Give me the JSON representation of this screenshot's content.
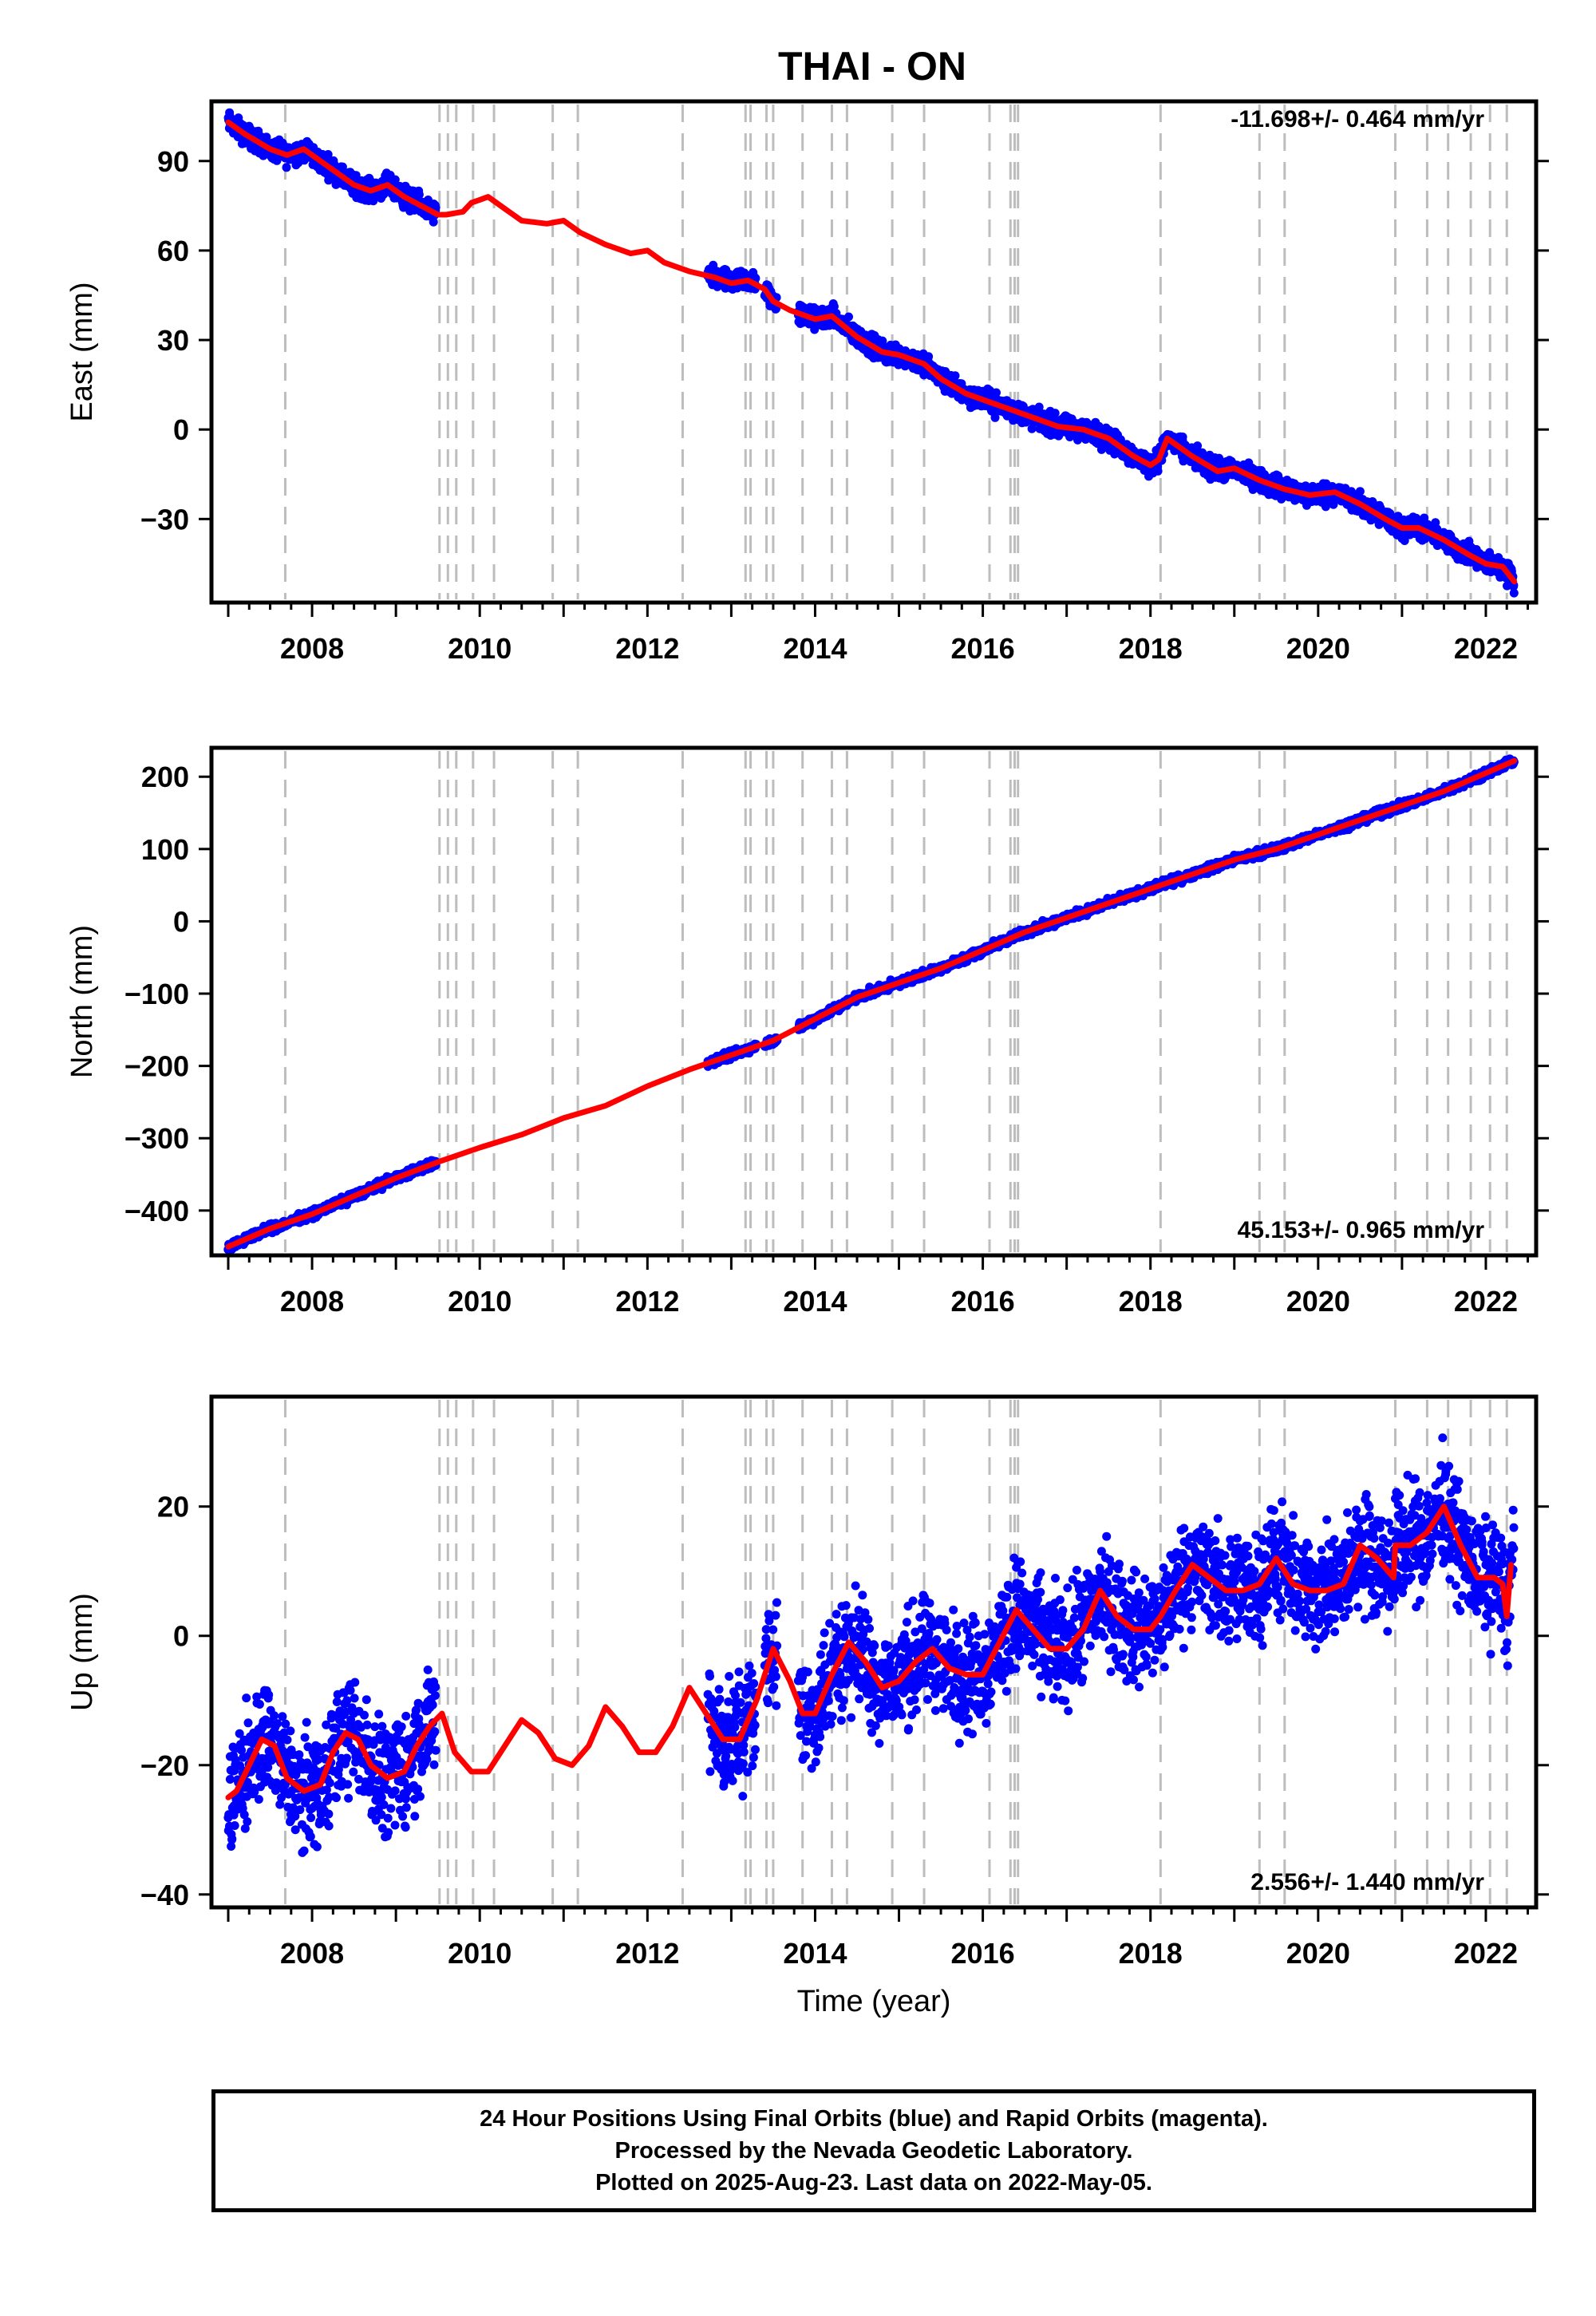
{
  "title": "THAI - ON",
  "footer": {
    "line1": "24 Hour Positions Using Final Orbits (blue) and Rapid Orbits (magenta).",
    "line2": "Processed by the Nevada Geodetic Laboratory.",
    "line3": "Plotted on 2025-Aug-23. Last data on 2022-May-05."
  },
  "colors": {
    "data": "#0000ff",
    "model": "#ff0000",
    "events": "#bdbdbd",
    "axes": "#000000"
  },
  "chart_data": [
    {
      "type": "scatter",
      "component": "East",
      "ylabel": "East (mm)",
      "xlabel": "",
      "rate_label": "-11.698+/- 0.464 mm/yr",
      "rate_position": "top-right",
      "xlim": [
        2006.8,
        2022.6
      ],
      "ylim": [
        -58,
        110
      ],
      "xticks": [
        2008,
        2010,
        2012,
        2014,
        2016,
        2018,
        2020,
        2022
      ],
      "yticks": [
        -30,
        0,
        30,
        60,
        90
      ],
      "events": [
        2007.68,
        2009.52,
        2009.62,
        2009.72,
        2009.92,
        2010.17,
        2010.87,
        2011.17,
        2012.42,
        2013.17,
        2013.23,
        2013.42,
        2013.5,
        2013.85,
        2014.2,
        2014.38,
        2014.92,
        2015.3,
        2016.08,
        2016.33,
        2016.38,
        2016.42,
        2018.12,
        2019.3,
        2019.6,
        2020.92,
        2021.3,
        2021.55,
        2021.82,
        2022.05,
        2022.25
      ],
      "data_spans": [
        [
          2007.0,
          2009.48
        ],
        [
          2012.72,
          2013.3
        ],
        [
          2013.4,
          2013.55
        ],
        [
          2013.8,
          2022.34
        ]
      ],
      "scatter_noise": 2.5,
      "model": {
        "x": [
          2007.0,
          2007.2,
          2007.5,
          2007.7,
          2007.9,
          2008.1,
          2008.3,
          2008.5,
          2008.7,
          2008.9,
          2009.1,
          2009.3,
          2009.5,
          2009.6,
          2009.8,
          2009.9,
          2010.0,
          2010.1,
          2010.3,
          2010.5,
          2010.8,
          2011.0,
          2011.2,
          2011.5,
          2011.8,
          2012.0,
          2012.2,
          2012.5,
          2012.8,
          2013.0,
          2013.2,
          2013.4,
          2013.5,
          2013.7,
          2014.0,
          2014.2,
          2014.5,
          2014.8,
          2015.0,
          2015.3,
          2015.5,
          2015.8,
          2016.0,
          2016.3,
          2016.6,
          2016.9,
          2017.2,
          2017.5,
          2017.8,
          2018.0,
          2018.1,
          2018.2,
          2018.5,
          2018.8,
          2019.0,
          2019.3,
          2019.6,
          2019.9,
          2020.2,
          2020.5,
          2020.8,
          2021.0,
          2021.2,
          2021.5,
          2021.8,
          2022.0,
          2022.2,
          2022.34
        ],
        "y": [
          103,
          99,
          94,
          92,
          94,
          90,
          86,
          82,
          80,
          82,
          78,
          75,
          72,
          72,
          73,
          76,
          77,
          78,
          74,
          70,
          69,
          70,
          66,
          62,
          59,
          60,
          56,
          53,
          51,
          49,
          50,
          47,
          43,
          40,
          37,
          38,
          31,
          26,
          25,
          22,
          17,
          12,
          10,
          7,
          4,
          1,
          0,
          -3,
          -9,
          -12,
          -10,
          -3,
          -9,
          -14,
          -13,
          -17,
          -20,
          -22,
          -21,
          -25,
          -30,
          -33,
          -33,
          -37,
          -42,
          -45,
          -46,
          -51
        ]
      }
    },
    {
      "type": "scatter",
      "component": "North",
      "ylabel": "North (mm)",
      "xlabel": "",
      "rate_label": "45.153+/- 0.965 mm/yr",
      "rate_position": "bottom-right",
      "xlim": [
        2006.8,
        2022.6
      ],
      "ylim": [
        -462,
        240
      ],
      "xticks": [
        2008,
        2010,
        2012,
        2014,
        2016,
        2018,
        2020,
        2022
      ],
      "yticks": [
        -400,
        -300,
        -200,
        -100,
        0,
        100,
        200
      ],
      "events": [
        2007.68,
        2009.52,
        2009.62,
        2009.72,
        2009.92,
        2010.17,
        2010.87,
        2011.17,
        2012.42,
        2013.17,
        2013.23,
        2013.42,
        2013.5,
        2013.85,
        2014.2,
        2014.38,
        2014.92,
        2015.3,
        2016.08,
        2016.33,
        2016.38,
        2016.42,
        2018.12,
        2019.3,
        2019.6,
        2020.92,
        2021.3,
        2021.55,
        2021.82,
        2022.05,
        2022.25
      ],
      "data_spans": [
        [
          2007.0,
          2009.48
        ],
        [
          2012.72,
          2013.3
        ],
        [
          2013.4,
          2013.55
        ],
        [
          2013.8,
          2022.34
        ]
      ],
      "scatter_noise": 4,
      "model": {
        "x": [
          2007.0,
          2007.5,
          2008.0,
          2008.5,
          2009.0,
          2009.5,
          2010.0,
          2010.5,
          2011.0,
          2011.5,
          2012.0,
          2012.5,
          2013.0,
          2013.5,
          2014.0,
          2014.5,
          2015.0,
          2015.5,
          2016.0,
          2016.5,
          2017.0,
          2017.5,
          2018.0,
          2018.5,
          2019.0,
          2019.5,
          2020.0,
          2020.5,
          2021.0,
          2021.5,
          2022.0,
          2022.34
        ],
        "y": [
          -450,
          -425,
          -405,
          -380,
          -355,
          -333,
          -313,
          -295,
          -272,
          -255,
          -228,
          -205,
          -185,
          -165,
          -135,
          -105,
          -85,
          -65,
          -40,
          -15,
          5,
          25,
          45,
          65,
          85,
          100,
          120,
          140,
          160,
          180,
          205,
          222
        ]
      }
    },
    {
      "type": "scatter",
      "component": "Up",
      "ylabel": "Up (mm)",
      "xlabel": "Time (year)",
      "rate_label": "2.556+/- 1.440 mm/yr",
      "rate_position": "bottom-right",
      "xlim": [
        2006.8,
        2022.6
      ],
      "ylim": [
        -42,
        37
      ],
      "xticks": [
        2008,
        2010,
        2012,
        2014,
        2016,
        2018,
        2020,
        2022
      ],
      "yticks": [
        -40,
        -20,
        0,
        20
      ],
      "events": [
        2007.68,
        2009.52,
        2009.62,
        2009.72,
        2009.92,
        2010.17,
        2010.87,
        2011.17,
        2012.42,
        2013.17,
        2013.23,
        2013.42,
        2013.5,
        2013.85,
        2014.2,
        2014.38,
        2014.92,
        2015.3,
        2016.08,
        2016.33,
        2016.38,
        2016.42,
        2018.12,
        2019.3,
        2019.6,
        2020.92,
        2021.3,
        2021.55,
        2021.82,
        2022.05,
        2022.25
      ],
      "data_spans": [
        [
          2007.0,
          2009.48
        ],
        [
          2012.72,
          2013.3
        ],
        [
          2013.4,
          2013.55
        ],
        [
          2013.8,
          2022.34
        ]
      ],
      "scatter_noise": 6,
      "model": {
        "x": [
          2007.0,
          2007.1,
          2007.25,
          2007.4,
          2007.55,
          2007.7,
          2007.9,
          2008.1,
          2008.25,
          2008.4,
          2008.55,
          2008.7,
          2008.9,
          2009.1,
          2009.25,
          2009.4,
          2009.55,
          2009.7,
          2009.9,
          2010.1,
          2010.3,
          2010.5,
          2010.7,
          2010.9,
          2011.1,
          2011.3,
          2011.5,
          2011.7,
          2011.9,
          2012.1,
          2012.3,
          2012.5,
          2012.7,
          2012.9,
          2013.1,
          2013.3,
          2013.5,
          2013.7,
          2013.85,
          2014.0,
          2014.2,
          2014.4,
          2014.6,
          2014.8,
          2015.0,
          2015.2,
          2015.4,
          2015.6,
          2015.8,
          2016.0,
          2016.2,
          2016.4,
          2016.6,
          2016.8,
          2017.0,
          2017.2,
          2017.4,
          2017.6,
          2017.8,
          2018.0,
          2018.12,
          2018.3,
          2018.5,
          2018.7,
          2018.9,
          2019.1,
          2019.3,
          2019.5,
          2019.7,
          2019.9,
          2020.1,
          2020.3,
          2020.5,
          2020.7,
          2020.9,
          2020.92,
          2021.1,
          2021.3,
          2021.5,
          2021.7,
          2021.9,
          2022.1,
          2022.2,
          2022.25,
          2022.3
        ],
        "y": [
          -25,
          -24,
          -20,
          -16,
          -17,
          -22,
          -24,
          -23,
          -18,
          -15,
          -16,
          -20,
          -22,
          -21,
          -17,
          -14,
          -12,
          -18,
          -21,
          -21,
          -17,
          -13,
          -15,
          -19,
          -20,
          -17,
          -11,
          -14,
          -18,
          -18,
          -14,
          -8,
          -12,
          -16,
          -16,
          -10,
          -2,
          -7,
          -12,
          -12,
          -6,
          -1,
          -4,
          -8,
          -7,
          -4,
          -2,
          -5,
          -6,
          -6,
          -1,
          4,
          1,
          -2,
          -2,
          1,
          7,
          3,
          1,
          1,
          3,
          7,
          11,
          9,
          7,
          7,
          8,
          12,
          8,
          7,
          7,
          8,
          14,
          12,
          9,
          14,
          14,
          16,
          20,
          14,
          9,
          9,
          8,
          3,
          11
        ]
      }
    }
  ]
}
